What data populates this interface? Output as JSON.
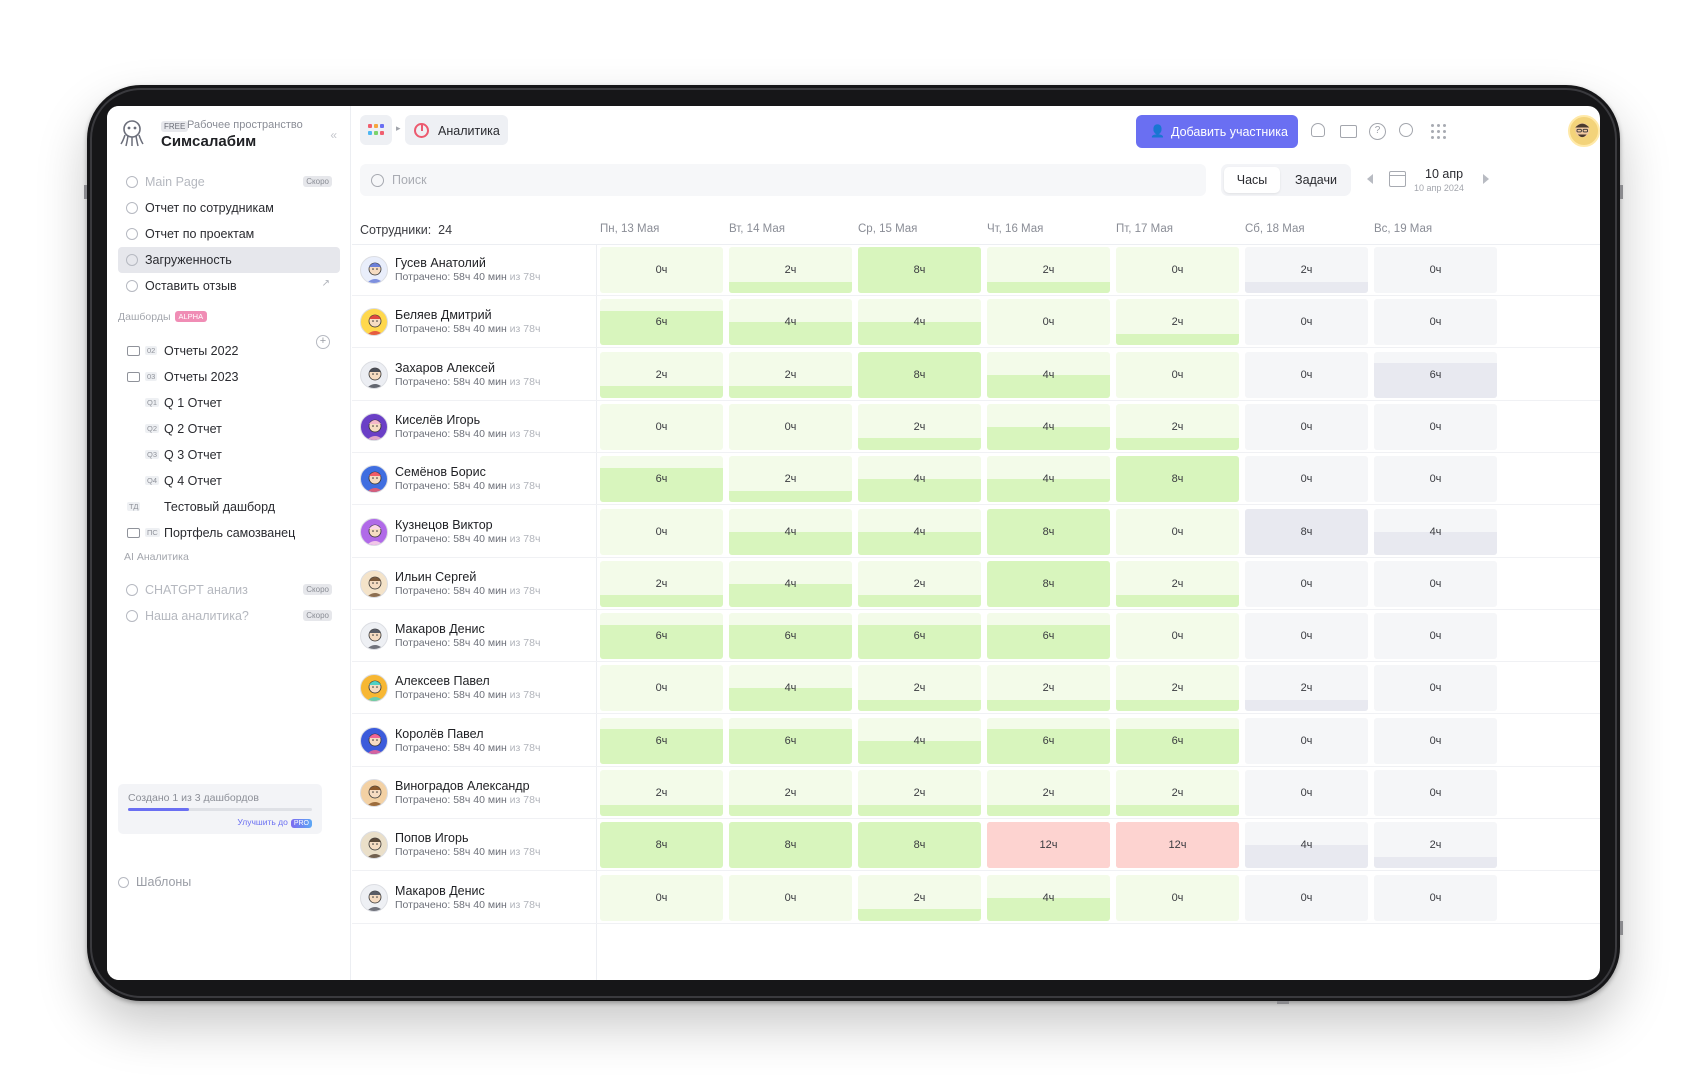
{
  "workspace": {
    "badge": "FREE",
    "subtitle": "Рабочее пространство",
    "name": "Симсалабим",
    "collapse_icon": "double-chevron-left-icon"
  },
  "sidebar": {
    "nav": [
      {
        "label": "Main Page",
        "badge": "Скоро",
        "state": "disabled"
      },
      {
        "label": "Отчет по сотрудникам",
        "state": "normal"
      },
      {
        "label": "Отчет по проектам",
        "state": "normal"
      },
      {
        "label": "Загруженность",
        "state": "active"
      },
      {
        "label": "Оставить отзыв",
        "state": "normal",
        "trailing_icon": "external-link-icon"
      }
    ],
    "dashboards_title": "Дашборды",
    "dashboards_badge": "ALPHA",
    "folders": [
      {
        "code": "02",
        "label": "Отчеты 2022"
      },
      {
        "code": "03",
        "label": "Отчеты 2023"
      }
    ],
    "reports": [
      {
        "code": "Q1",
        "label": "Q 1 Отчет"
      },
      {
        "code": "Q2",
        "label": "Q 2 Отчет"
      },
      {
        "code": "Q3",
        "label": "Q 3 Отчет"
      },
      {
        "code": "Q4",
        "label": "Q 4 Отчет"
      }
    ],
    "test_dashboard": {
      "code": "ТД",
      "label": "Тестовый дашборд"
    },
    "portfolio": {
      "code": "ПС",
      "label": "Портфель самозванец"
    },
    "ai_title": "AI Аналитика",
    "ai_items": [
      {
        "label": "CHATGPT анализ",
        "badge": "Скоро"
      },
      {
        "label": "Наша аналитика?",
        "badge": "Скоро"
      }
    ],
    "quota": {
      "text": "Создано 1 из 3 дашбордов",
      "used": 1,
      "total": 3,
      "upgrade": "Улучшить до",
      "pro": "PRO"
    },
    "templates": "Шаблоны"
  },
  "header": {
    "breadcrumb": "Аналитика",
    "add_button": "Добавить участника",
    "icons": [
      "bell-icon",
      "folder-icon",
      "help-icon",
      "search-icon",
      "apps-grid-icon"
    ]
  },
  "toolbar": {
    "search_placeholder": "Поиск",
    "mode_hours": "Часы",
    "mode_tasks": "Задачи",
    "active_mode": "Часы",
    "date_main": "10 апр",
    "date_sub": "10 апр 2024"
  },
  "colors": {
    "accent": "#6a6ff2",
    "workday_bg": "#f3fbe9",
    "workday_fill": "#d8f5bd",
    "weekend_bg": "#f5f6f8",
    "weekend_fill": "#e8e9f0",
    "overtime": "#fdd3d0"
  },
  "table": {
    "employees_label": "Сотрудники:",
    "employees_count": "24",
    "days": [
      {
        "label": "Пн, 13 Мая",
        "weekend": false
      },
      {
        "label": "Вт, 14 Мая",
        "weekend": false
      },
      {
        "label": "Ср, 15 Мая",
        "weekend": false
      },
      {
        "label": "Чт, 16 Мая",
        "weekend": false
      },
      {
        "label": "Пт, 17 Мая",
        "weekend": false
      },
      {
        "label": "Сб, 18 Мая",
        "weekend": true
      },
      {
        "label": "Вс, 19 Мая",
        "weekend": true
      }
    ],
    "max_hours": 8,
    "spent_prefix": "Потрачено:",
    "spent_value": "58ч 40 мин",
    "spent_of": "из 78ч",
    "rows": [
      {
        "name": "Гусев Анатолий",
        "hours": [
          0,
          2,
          8,
          2,
          0,
          2,
          0
        ]
      },
      {
        "name": "Беляев Дмитрий",
        "hours": [
          6,
          4,
          4,
          0,
          2,
          0,
          0
        ]
      },
      {
        "name": "Захаров Алексей",
        "hours": [
          2,
          2,
          8,
          4,
          0,
          0,
          6
        ]
      },
      {
        "name": "Киселёв Игорь",
        "hours": [
          0,
          0,
          2,
          4,
          2,
          0,
          0
        ]
      },
      {
        "name": "Семёнов Борис",
        "hours": [
          6,
          2,
          4,
          4,
          8,
          0,
          0
        ]
      },
      {
        "name": "Кузнецов Виктор",
        "hours": [
          0,
          4,
          4,
          8,
          0,
          8,
          4
        ]
      },
      {
        "name": "Ильин Сергей",
        "hours": [
          2,
          4,
          2,
          8,
          2,
          0,
          0
        ]
      },
      {
        "name": "Макаров Денис",
        "hours": [
          6,
          6,
          6,
          6,
          0,
          0,
          0
        ]
      },
      {
        "name": "Алексеев Павел",
        "hours": [
          0,
          4,
          2,
          2,
          2,
          2,
          0
        ]
      },
      {
        "name": "Королёв Павел",
        "hours": [
          6,
          6,
          4,
          6,
          6,
          0,
          0
        ]
      },
      {
        "name": "Виноградов Александр",
        "hours": [
          2,
          2,
          2,
          2,
          2,
          0,
          0
        ]
      },
      {
        "name": "Попов Игорь",
        "hours": [
          8,
          8,
          8,
          12,
          12,
          4,
          2
        ]
      },
      {
        "name": "Макаров Денис",
        "hours": [
          0,
          0,
          2,
          4,
          0,
          0,
          0
        ]
      }
    ],
    "hour_suffix": "ч"
  }
}
